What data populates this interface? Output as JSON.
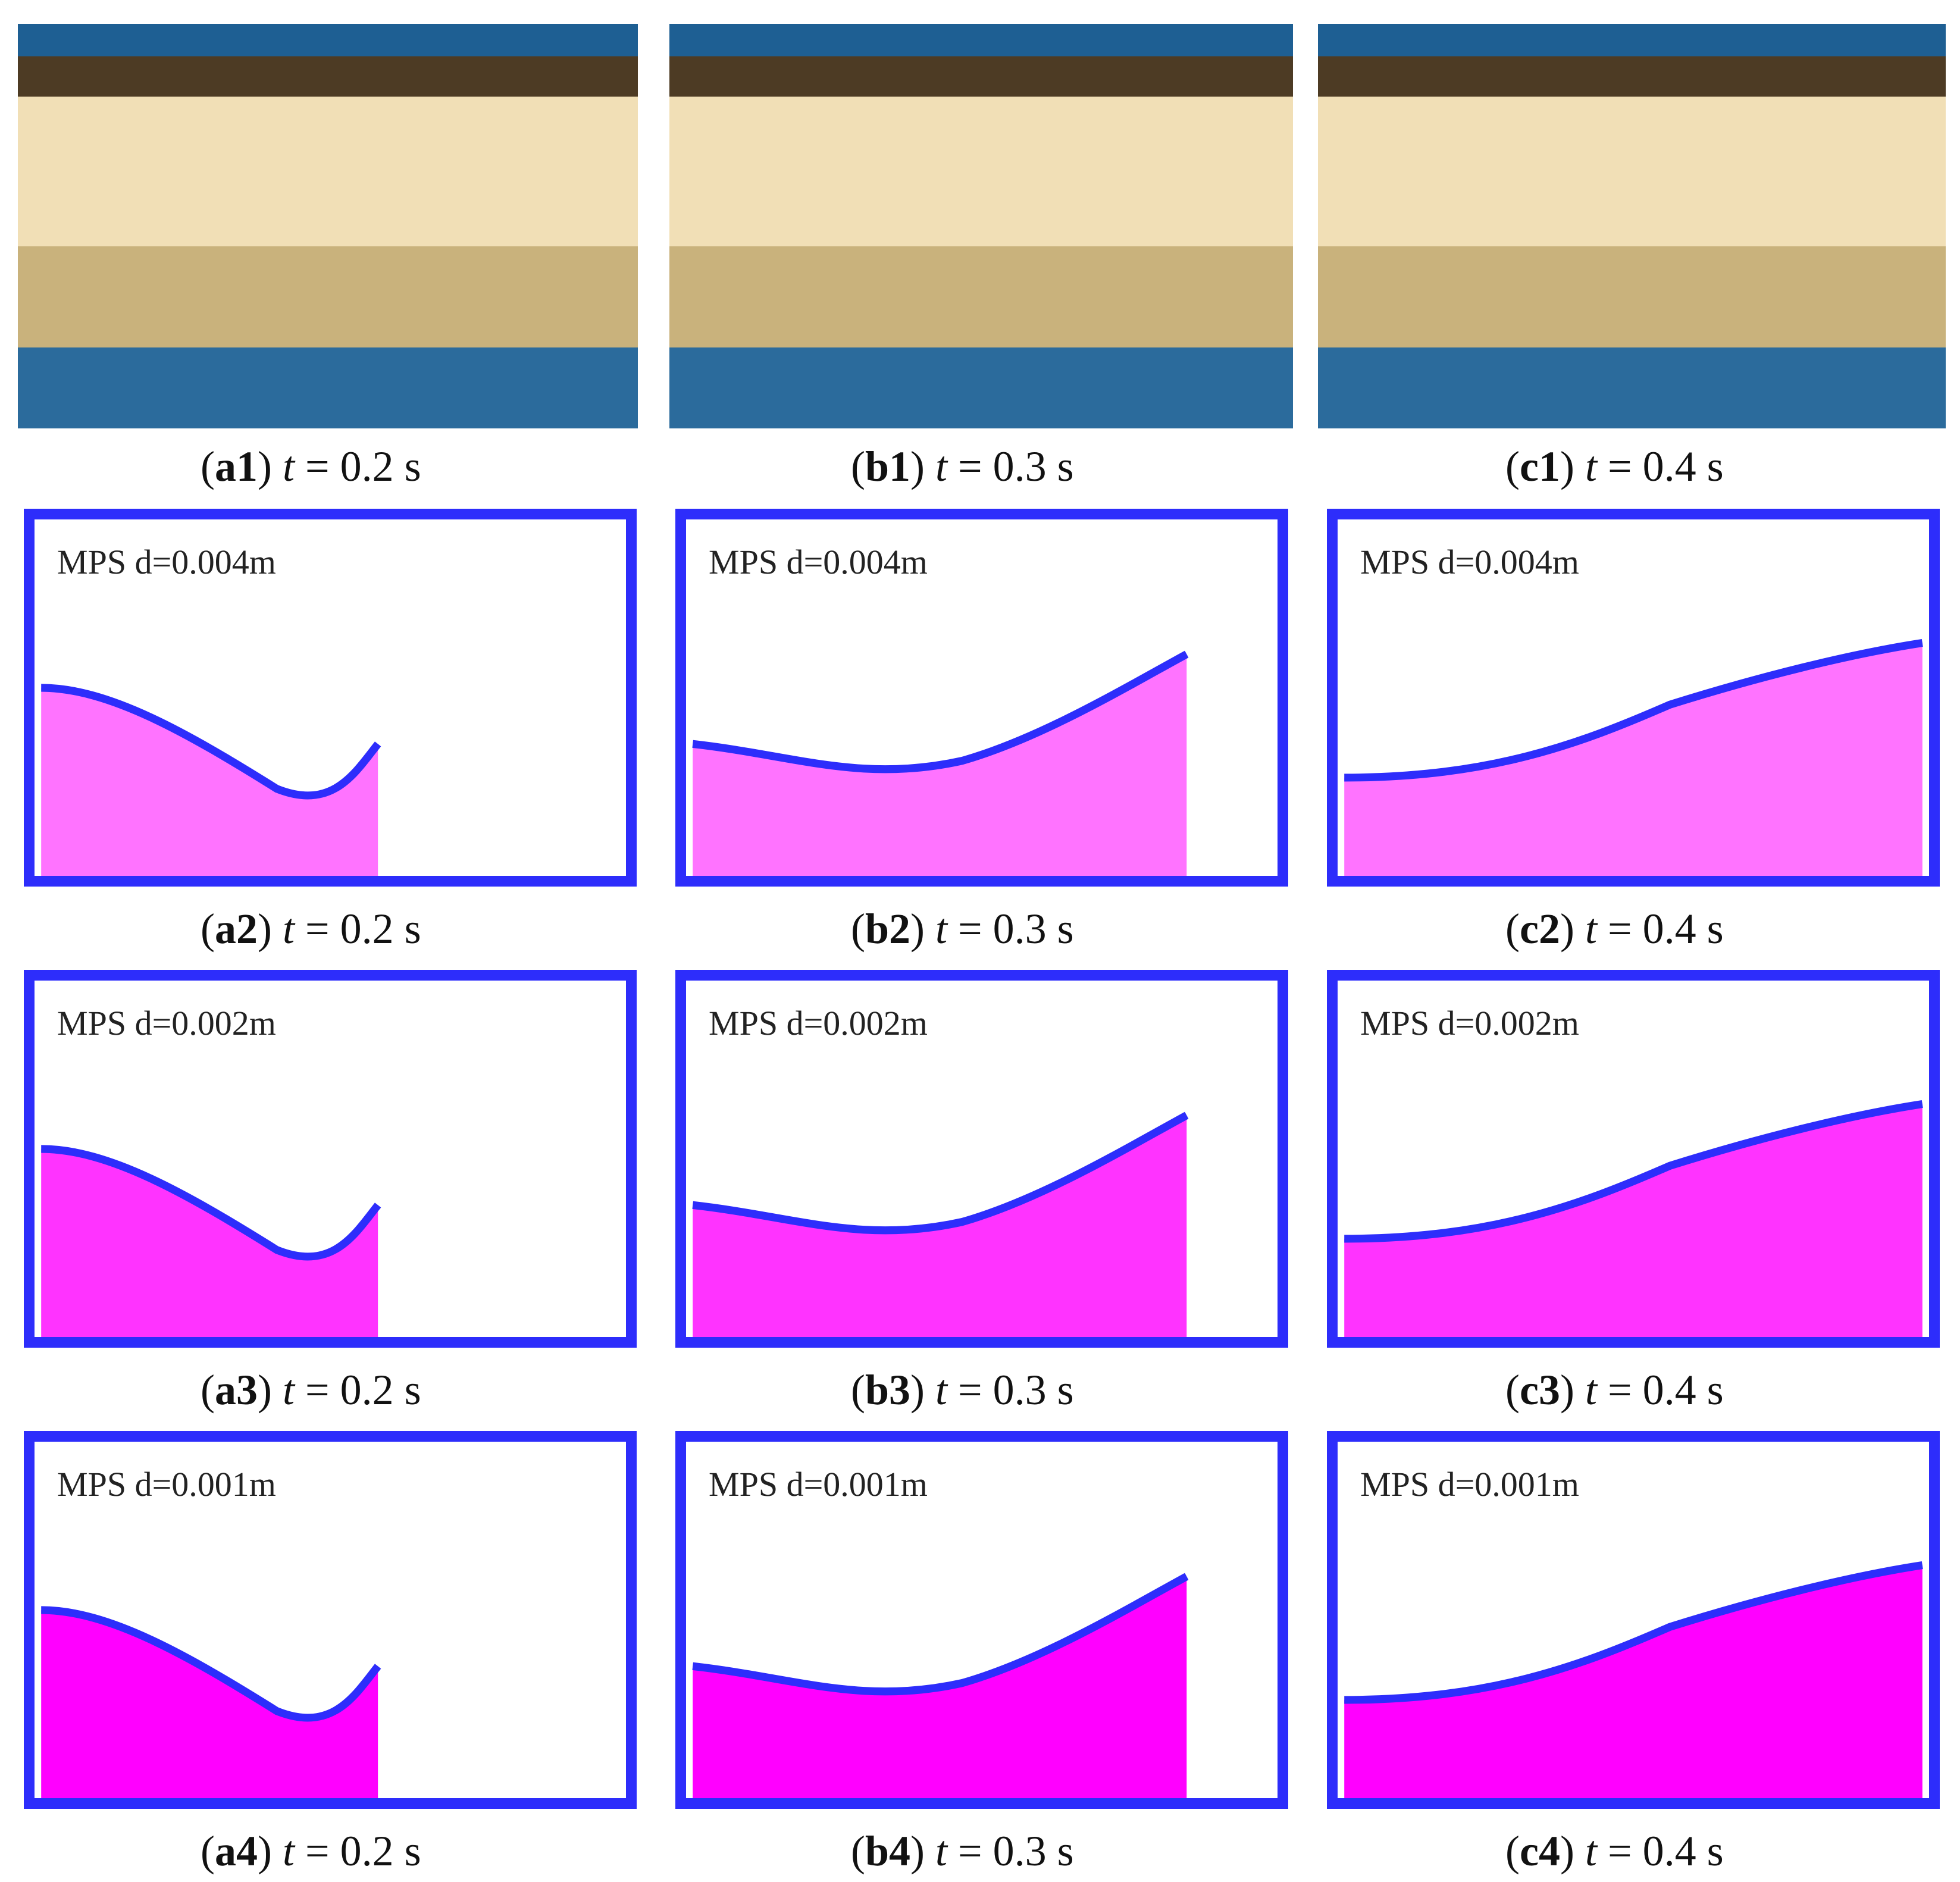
{
  "panels": {
    "a1": {
      "id": "a1",
      "time": "0.2 s"
    },
    "b1": {
      "id": "b1",
      "time": "0.3 s"
    },
    "c1": {
      "id": "c1",
      "time": "0.4 s"
    },
    "a2": {
      "id": "a2",
      "time": "0.2 s",
      "sim": "MPS d=0.004m"
    },
    "b2": {
      "id": "b2",
      "time": "0.3 s",
      "sim": "MPS d=0.004m"
    },
    "c2": {
      "id": "c2",
      "time": "0.4 s",
      "sim": "MPS d=0.004m"
    },
    "a3": {
      "id": "a3",
      "time": "0.2 s",
      "sim": "MPS d=0.002m"
    },
    "b3": {
      "id": "b3",
      "time": "0.3 s",
      "sim": "MPS d=0.002m"
    },
    "c3": {
      "id": "c3",
      "time": "0.4 s",
      "sim": "MPS d=0.002m"
    },
    "a4": {
      "id": "a4",
      "time": "0.2 s",
      "sim": "MPS d=0.001m"
    },
    "b4": {
      "id": "b4",
      "time": "0.3 s",
      "sim": "MPS d=0.001m"
    },
    "c4": {
      "id": "c4",
      "time": "0.4 s",
      "sim": "MPS d=0.001m"
    }
  },
  "label_symbol": "t",
  "colors": {
    "wall": "#2d2dfb",
    "fluid": "#ff00ff",
    "paper": "#ffffff"
  }
}
